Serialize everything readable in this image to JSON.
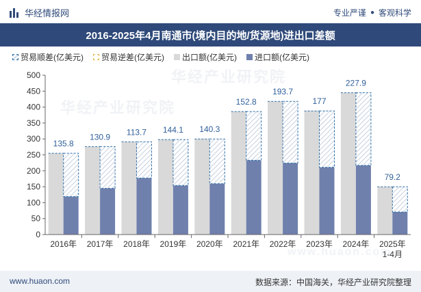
{
  "header": {
    "brand": "华经情报网",
    "tagline_1": "专业严谨",
    "tagline_sep": "●",
    "tagline_2": "客观科学"
  },
  "watermark": {
    "text": "华经产业研究院",
    "url": "www.huaon.com"
  },
  "footer": {
    "website": "www.huaon.com",
    "source": "数据来源：中国海关，华经产业研究院整理"
  },
  "legend": {
    "surplus": "贸易顺差(亿美元)",
    "deficit": "贸易逆差(亿美元)",
    "export": "出口额(亿美元)",
    "import": "进口额(亿美元)"
  },
  "colors": {
    "header_bar": "#2f4a7a",
    "export": "#d9d9d9",
    "import": "#6f80ad",
    "surplus_border": "#2f6fa8",
    "label": "#2f5f9a"
  },
  "chart_data": {
    "type": "bar",
    "title": "2016-2025年4月南通市(境内目的地/货源地)进出口差额",
    "categories": [
      "2016年",
      "2017年",
      "2018年",
      "2019年",
      "2020年",
      "2021年",
      "2022年",
      "2023年",
      "2024年",
      "2025年\n1-4月"
    ],
    "series": [
      {
        "name": "出口额(亿美元)",
        "values": [
          255,
          276,
          291,
          298,
          300,
          386,
          418,
          388,
          445,
          150
        ]
      },
      {
        "name": "进口额(亿美元)",
        "values": [
          119.2,
          145.1,
          177.3,
          153.9,
          159.7,
          233.2,
          224.3,
          211,
          217.1,
          70.8
        ]
      },
      {
        "name": "贸易顺差(亿美元)",
        "values": [
          135.8,
          130.9,
          113.7,
          144.1,
          140.3,
          152.8,
          193.7,
          177,
          227.9,
          79.2
        ]
      }
    ],
    "y_ticks": [
      0,
      50,
      100,
      150,
      200,
      250,
      300,
      350,
      400,
      450,
      500
    ],
    "ylim": [
      0,
      500
    ],
    "grid": false,
    "legend_position": "top-left"
  }
}
